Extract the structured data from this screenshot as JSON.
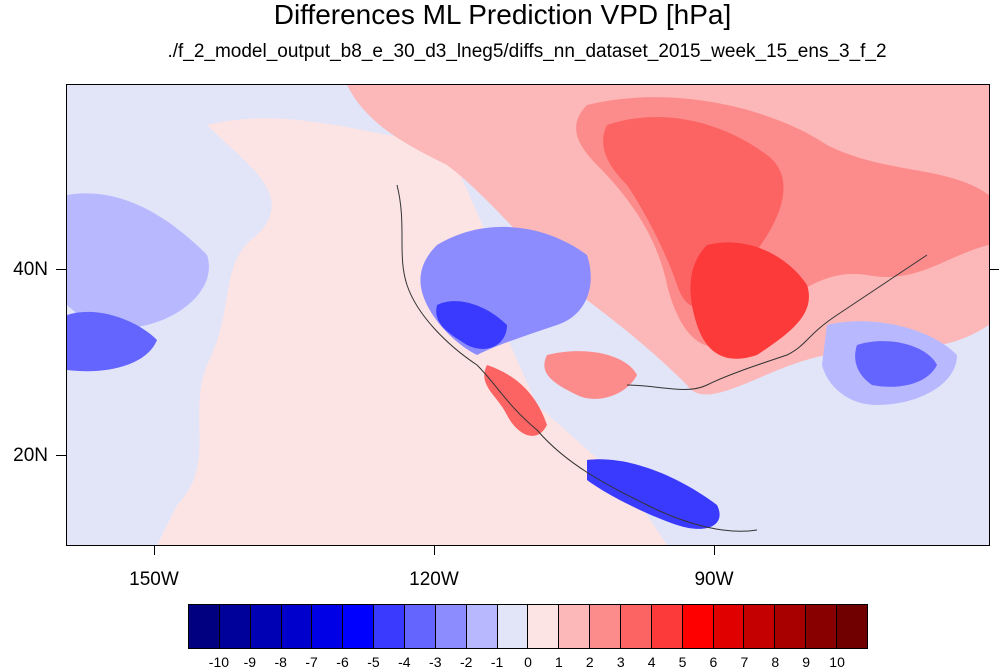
{
  "title": "Differences ML Prediction VPD [hPa]",
  "subtitle": "./f_2_model_output_b8_e_30_d3_lneg5/diffs_nn_dataset_2015_week_15_ens_3_f_2",
  "axes": {
    "lon_labels": [
      "150W",
      "120W",
      "90W"
    ],
    "lat_labels": [
      "40N",
      "20N"
    ]
  },
  "colorbar": {
    "labels": [
      "-10",
      "-9",
      "-8",
      "-7",
      "-6",
      "-5",
      "-4",
      "-3",
      "-2",
      "-1",
      "0",
      "1",
      "2",
      "3",
      "4",
      "5",
      "6",
      "7",
      "8",
      "9",
      "10"
    ],
    "colors": [
      "#000080",
      "#00009a",
      "#0000b4",
      "#0000cd",
      "#0000e6",
      "#0000ff",
      "#3a3aff",
      "#6464ff",
      "#8c8cff",
      "#b8b8ff",
      "#e2e4f8",
      "#fce4e4",
      "#fcb8b8",
      "#fc8c8c",
      "#fc6464",
      "#fc3a3a",
      "#ff0000",
      "#e00000",
      "#c40000",
      "#a80000",
      "#880000",
      "#700000"
    ]
  }
}
